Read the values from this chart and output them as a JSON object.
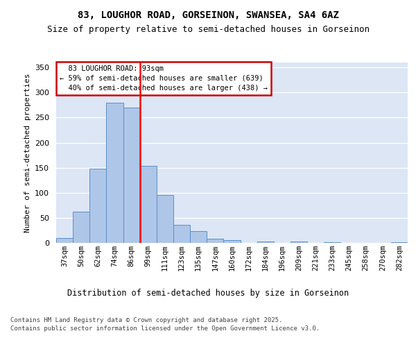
{
  "title": "83, LOUGHOR ROAD, GORSEINON, SWANSEA, SA4 6AZ",
  "subtitle": "Size of property relative to semi-detached houses in Gorseinon",
  "xlabel": "Distribution of semi-detached houses by size in Gorseinon",
  "ylabel": "Number of semi-detached properties",
  "categories": [
    "37sqm",
    "50sqm",
    "62sqm",
    "74sqm",
    "86sqm",
    "99sqm",
    "111sqm",
    "123sqm",
    "135sqm",
    "147sqm",
    "160sqm",
    "172sqm",
    "184sqm",
    "196sqm",
    "209sqm",
    "221sqm",
    "233sqm",
    "245sqm",
    "258sqm",
    "270sqm",
    "282sqm"
  ],
  "values": [
    10,
    63,
    148,
    280,
    270,
    153,
    95,
    36,
    24,
    9,
    5,
    0,
    3,
    0,
    3,
    0,
    1,
    0,
    0,
    0,
    1
  ],
  "bar_color": "#aec6e8",
  "bar_edge_color": "#5b8fc9",
  "property_line_x": 4.5,
  "property_label": "83 LOUGHOR ROAD: 93sqm",
  "smaller_pct": "59% of semi-detached houses are smaller (639)",
  "larger_pct": "40% of semi-detached houses are larger (438)",
  "annotation_box_color": "#cc0000",
  "ylim": [
    0,
    360
  ],
  "yticks": [
    0,
    50,
    100,
    150,
    200,
    250,
    300,
    350
  ],
  "plot_bg_color": "#dce6f5",
  "footer": "Contains HM Land Registry data © Crown copyright and database right 2025.\nContains public sector information licensed under the Open Government Licence v3.0.",
  "title_fontsize": 10,
  "subtitle_fontsize": 9
}
